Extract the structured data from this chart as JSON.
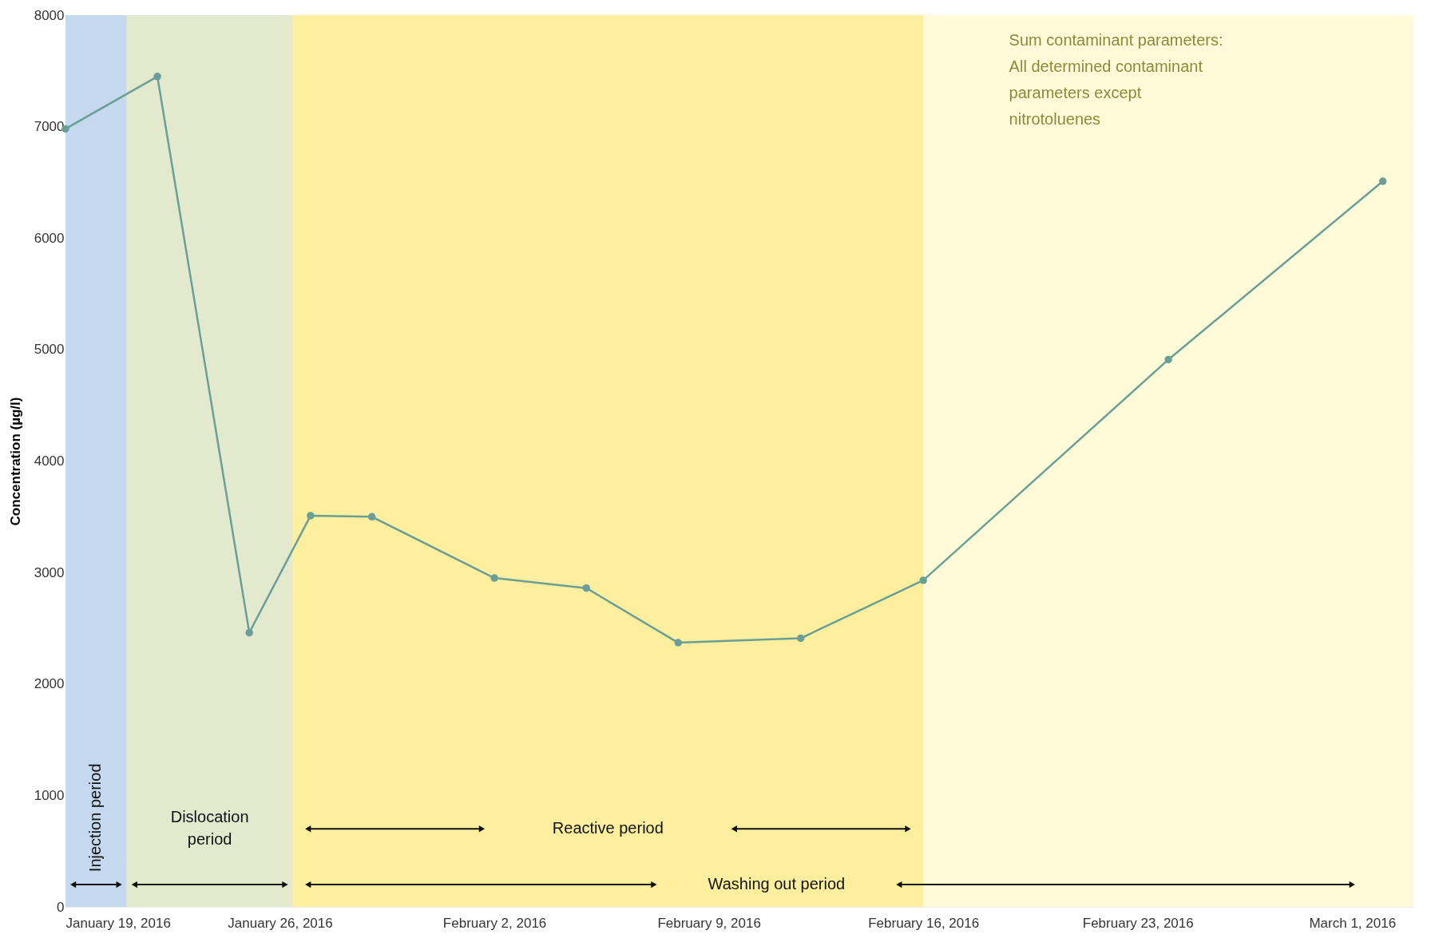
{
  "chart_data": {
    "type": "line",
    "ylabel": "Concentration (µg/l)",
    "x": [
      "2016-01-19",
      "2016-01-22",
      "2016-01-25",
      "2016-01-27",
      "2016-01-29",
      "2016-02-02",
      "2016-02-05",
      "2016-02-08",
      "2016-02-12",
      "2016-02-16",
      "2016-02-24",
      "2016-03-02"
    ],
    "series": [
      {
        "color": "#6a9f98",
        "values": [
          6980,
          7450,
          2460,
          3510,
          3500,
          2950,
          2860,
          2370,
          2410,
          2930,
          4910,
          6510
        ]
      }
    ],
    "xlim": [
      "2016-01-19",
      "2016-03-03"
    ],
    "xticks": [
      {
        "value": "2016-01-19",
        "label": "January 19, 2016"
      },
      {
        "value": "2016-01-26",
        "label": "January 26, 2016"
      },
      {
        "value": "2016-02-02",
        "label": "February 2, 2016"
      },
      {
        "value": "2016-02-09",
        "label": "February 9, 2016"
      },
      {
        "value": "2016-02-16",
        "label": "February 16, 2016"
      },
      {
        "value": "2016-02-23",
        "label": "February 23, 2016"
      },
      {
        "value": "2016-03-01",
        "label": "March 1, 2016"
      }
    ],
    "ylim": [
      0,
      8000
    ],
    "yticks": [
      0,
      1000,
      2000,
      3000,
      4000,
      5000,
      6000,
      7000,
      8000
    ],
    "bands": [
      {
        "axis": "x",
        "from": "2016-01-26T10:00",
        "to": "2016-03-03",
        "label": "Washing out period",
        "color": "#fffbd8"
      },
      {
        "axis": "x",
        "from": "2016-01-19",
        "to": "2016-01-21",
        "label": "Injection period",
        "color": "#c5d9ee"
      },
      {
        "axis": "x",
        "from": "2016-01-21",
        "to": "2016-01-26T10:00",
        "label": "Dislocation period",
        "color": "#e2e9cd"
      },
      {
        "axis": "x",
        "from": "2016-01-26T10:00",
        "to": "2016-02-16",
        "label": "Reactive period",
        "color": "#fdef9e"
      }
    ],
    "annotations": [
      "Sum contaminant parameters:  All determined contaminant parameters except nitrotoluenes"
    ],
    "grid": true,
    "marker": "circle",
    "line_style": "solid"
  }
}
